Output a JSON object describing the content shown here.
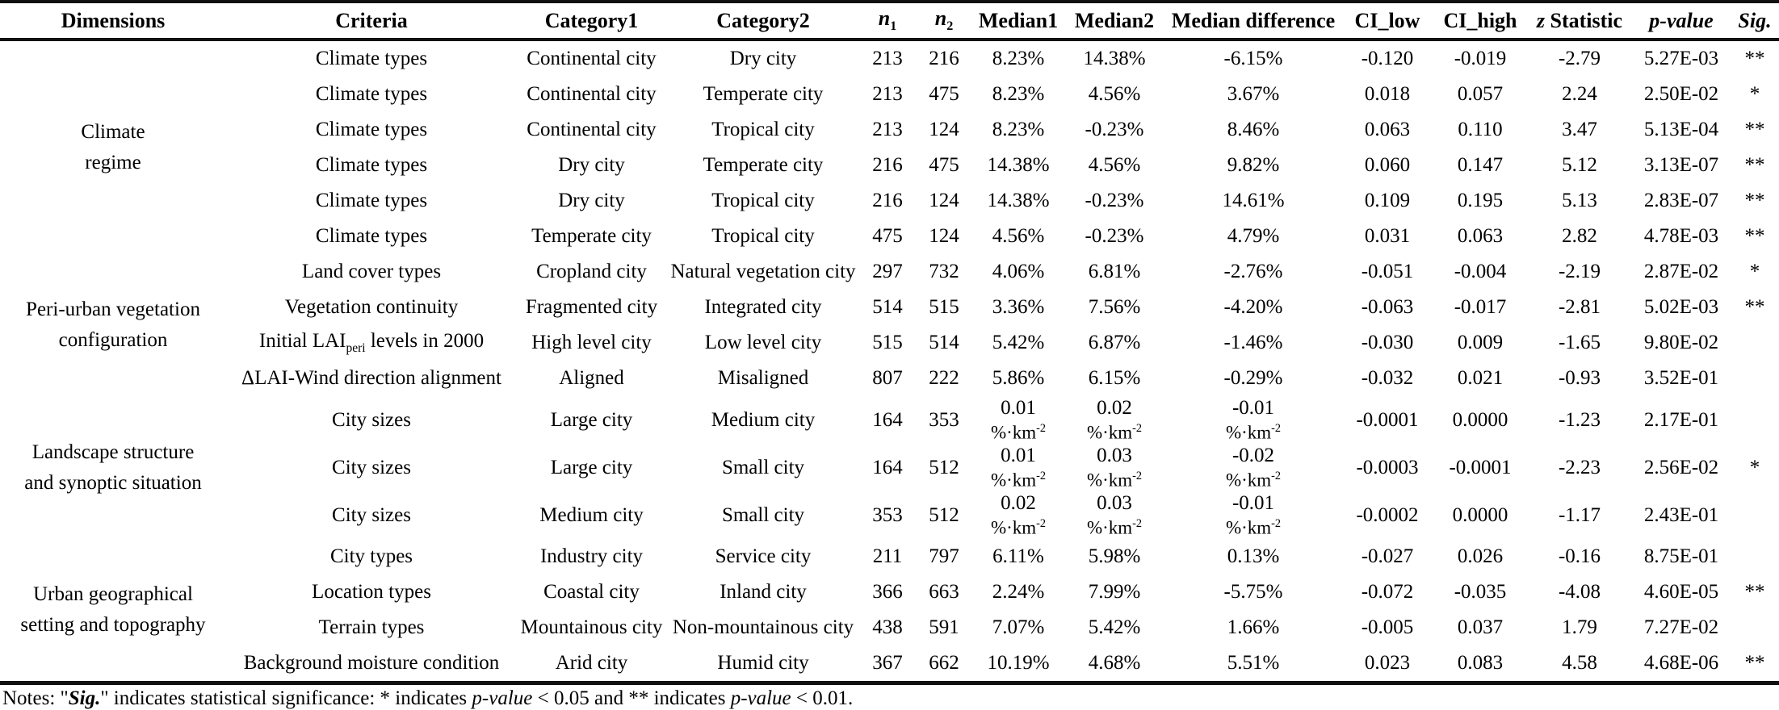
{
  "table": {
    "headers": [
      {
        "name": "dimensions",
        "segs": [
          {
            "t": "Dimensions"
          }
        ]
      },
      {
        "name": "criteria",
        "segs": [
          {
            "t": "Criteria"
          }
        ]
      },
      {
        "name": "category1",
        "segs": [
          {
            "t": "Category1"
          }
        ]
      },
      {
        "name": "category2",
        "segs": [
          {
            "t": "Category2"
          }
        ]
      },
      {
        "name": "n1",
        "segs": [
          {
            "t": "n",
            "i": true
          },
          {
            "t": "1",
            "sub": true
          }
        ]
      },
      {
        "name": "n2",
        "segs": [
          {
            "t": "n",
            "i": true
          },
          {
            "t": "2",
            "sub": true
          }
        ]
      },
      {
        "name": "median1",
        "segs": [
          {
            "t": "Median1"
          }
        ]
      },
      {
        "name": "median2",
        "segs": [
          {
            "t": "Median2"
          }
        ]
      },
      {
        "name": "median-difference",
        "segs": [
          {
            "t": "Median difference"
          }
        ]
      },
      {
        "name": "ci-low",
        "segs": [
          {
            "t": "CI_low"
          }
        ]
      },
      {
        "name": "ci-high",
        "segs": [
          {
            "t": "CI_high"
          }
        ]
      },
      {
        "name": "z-statistic",
        "segs": [
          {
            "t": "z",
            "i": true
          },
          {
            "t": " Statistic"
          }
        ]
      },
      {
        "name": "p-value",
        "segs": [
          {
            "t": "p-value",
            "i": true
          }
        ]
      },
      {
        "name": "sig",
        "segs": [
          {
            "t": "Sig.",
            "i": true
          }
        ]
      }
    ],
    "groups": [
      {
        "dimension_lines": [
          "Climate",
          "regime"
        ],
        "rows": [
          {
            "criteria": "Climate types",
            "category1": "Continental city",
            "category2": "Dry city",
            "n1": "213",
            "n2": "216",
            "median1": "8.23%",
            "median2": "14.38%",
            "median_diff": "-6.15%",
            "ci_low": "-0.120",
            "ci_high": "-0.019",
            "z": "-2.79",
            "p": "5.27E-03",
            "sig": "**"
          },
          {
            "criteria": "Climate types",
            "category1": "Continental city",
            "category2": "Temperate city",
            "n1": "213",
            "n2": "475",
            "median1": "8.23%",
            "median2": "4.56%",
            "median_diff": "3.67%",
            "ci_low": "0.018",
            "ci_high": "0.057",
            "z": "2.24",
            "p": "2.50E-02",
            "sig": "*"
          },
          {
            "criteria": "Climate types",
            "category1": "Continental city",
            "category2": "Tropical city",
            "n1": "213",
            "n2": "124",
            "median1": "8.23%",
            "median2": "-0.23%",
            "median_diff": "8.46%",
            "ci_low": "0.063",
            "ci_high": "0.110",
            "z": "3.47",
            "p": "5.13E-04",
            "sig": "**"
          },
          {
            "criteria": "Climate types",
            "category1": "Dry city",
            "category2": "Temperate city",
            "n1": "216",
            "n2": "475",
            "median1": "14.38%",
            "median2": "4.56%",
            "median_diff": "9.82%",
            "ci_low": "0.060",
            "ci_high": "0.147",
            "z": "5.12",
            "p": "3.13E-07",
            "sig": "**"
          },
          {
            "criteria": "Climate types",
            "category1": "Dry city",
            "category2": "Tropical city",
            "n1": "216",
            "n2": "124",
            "median1": "14.38%",
            "median2": "-0.23%",
            "median_diff": "14.61%",
            "ci_low": "0.109",
            "ci_high": "0.195",
            "z": "5.13",
            "p": "2.83E-07",
            "sig": "**"
          },
          {
            "criteria": "Climate types",
            "category1": "Temperate city",
            "category2": "Tropical city",
            "n1": "475",
            "n2": "124",
            "median1": "4.56%",
            "median2": "-0.23%",
            "median_diff": "4.79%",
            "ci_low": "0.031",
            "ci_high": "0.063",
            "z": "2.82",
            "p": "4.78E-03",
            "sig": "**"
          }
        ]
      },
      {
        "dimension_lines": [
          "Peri-urban vegetation",
          "configuration"
        ],
        "rows": [
          {
            "criteria": "Land cover types",
            "category1": "Cropland city",
            "category2": "Natural vegetation city",
            "n1": "297",
            "n2": "732",
            "median1": "4.06%",
            "median2": "6.81%",
            "median_diff": "-2.76%",
            "ci_low": "-0.051",
            "ci_high": "-0.004",
            "z": "-2.19",
            "p": "2.87E-02",
            "sig": "*"
          },
          {
            "criteria": "Vegetation continuity",
            "category1": "Fragmented city",
            "category2": "Integrated city",
            "n1": "514",
            "n2": "515",
            "median1": "3.36%",
            "median2": "7.56%",
            "median_diff": "-4.20%",
            "ci_low": "-0.063",
            "ci_high": "-0.017",
            "z": "-2.81",
            "p": "5.02E-03",
            "sig": "**"
          },
          {
            "criteria": {
              "pre": "Initial LAI",
              "sub": "peri",
              "post": " levels in 2000"
            },
            "category1": "High level city",
            "category2": "Low level city",
            "n1": "515",
            "n2": "514",
            "median1": "5.42%",
            "median2": "6.87%",
            "median_diff": "-1.46%",
            "ci_low": "-0.030",
            "ci_high": "0.009",
            "z": "-1.65",
            "p": "9.80E-02",
            "sig": ""
          },
          {
            "criteria": "ΔLAI-Wind direction alignment",
            "category1": "Aligned",
            "category2": "Misaligned",
            "n1": "807",
            "n2": "222",
            "median1": "5.86%",
            "median2": "6.15%",
            "median_diff": "-0.29%",
            "ci_low": "-0.032",
            "ci_high": "0.021",
            "z": "-0.93",
            "p": "3.52E-01",
            "sig": ""
          }
        ]
      },
      {
        "dimension_lines": [
          "Landscape structure",
          "and synoptic situation"
        ],
        "rows": [
          {
            "criteria": "City sizes",
            "category1": "Large city",
            "category2": "Medium city",
            "n1": "164",
            "n2": "353",
            "median1": {
              "value": "0.01",
              "unit_base": "%·km",
              "unit_sup": "-2"
            },
            "median2": {
              "value": "0.02",
              "unit_base": "%·km",
              "unit_sup": "-2"
            },
            "median_diff": {
              "value": "-0.01",
              "unit_base": "%·km",
              "unit_sup": "-2"
            },
            "ci_low": "-0.0001",
            "ci_high": "0.0000",
            "z": "-1.23",
            "p": "2.17E-01",
            "sig": ""
          },
          {
            "criteria": "City sizes",
            "category1": "Large city",
            "category2": "Small city",
            "n1": "164",
            "n2": "512",
            "median1": {
              "value": "0.01",
              "unit_base": "%·km",
              "unit_sup": "-2"
            },
            "median2": {
              "value": "0.03",
              "unit_base": "%·km",
              "unit_sup": "-2"
            },
            "median_diff": {
              "value": "-0.02",
              "unit_base": "%·km",
              "unit_sup": "-2"
            },
            "ci_low": "-0.0003",
            "ci_high": "-0.0001",
            "z": "-2.23",
            "p": "2.56E-02",
            "sig": "*"
          },
          {
            "criteria": "City sizes",
            "category1": "Medium city",
            "category2": "Small city",
            "n1": "353",
            "n2": "512",
            "median1": {
              "value": "0.02",
              "unit_base": "%·km",
              "unit_sup": "-2"
            },
            "median2": {
              "value": "0.03",
              "unit_base": "%·km",
              "unit_sup": "-2"
            },
            "median_diff": {
              "value": "-0.01",
              "unit_base": "%·km",
              "unit_sup": "-2"
            },
            "ci_low": "-0.0002",
            "ci_high": "0.0000",
            "z": "-1.17",
            "p": "2.43E-01",
            "sig": ""
          }
        ]
      },
      {
        "dimension_lines": [
          "Urban geographical",
          "setting and topography"
        ],
        "rows": [
          {
            "criteria": "City types",
            "category1": "Industry city",
            "category2": "Service city",
            "n1": "211",
            "n2": "797",
            "median1": "6.11%",
            "median2": "5.98%",
            "median_diff": "0.13%",
            "ci_low": "-0.027",
            "ci_high": "0.026",
            "z": "-0.16",
            "p": "8.75E-01",
            "sig": ""
          },
          {
            "criteria": "Location types",
            "category1": "Coastal city",
            "category2": "Inland city",
            "n1": "366",
            "n2": "663",
            "median1": "2.24%",
            "median2": "7.99%",
            "median_diff": "-5.75%",
            "ci_low": "-0.072",
            "ci_high": "-0.035",
            "z": "-4.08",
            "p": "4.60E-05",
            "sig": "**"
          },
          {
            "criteria": "Terrain types",
            "category1": "Mountainous city",
            "category2": "Non-mountainous city",
            "n1": "438",
            "n2": "591",
            "median1": "7.07%",
            "median2": "5.42%",
            "median_diff": "1.66%",
            "ci_low": "-0.005",
            "ci_high": "0.037",
            "z": "1.79",
            "p": "7.27E-02",
            "sig": ""
          },
          {
            "criteria": "Background moisture condition",
            "category1": "Arid city",
            "category2": "Humid city",
            "n1": "367",
            "n2": "662",
            "median1": "10.19%",
            "median2": "4.68%",
            "median_diff": "5.51%",
            "ci_low": "0.023",
            "ci_high": "0.083",
            "z": "4.58",
            "p": "4.68E-06",
            "sig": "**"
          }
        ]
      }
    ]
  },
  "notes": {
    "segments": [
      {
        "t": "Notes: \""
      },
      {
        "t": "Sig.",
        "bi": true
      },
      {
        "t": "\" indicates statistical significance: * indicates "
      },
      {
        "t": "p-value",
        "i": true
      },
      {
        "t": " < 0.05 and ** indicates "
      },
      {
        "t": "p-value",
        "i": true
      },
      {
        "t": " < 0.01."
      }
    ]
  }
}
